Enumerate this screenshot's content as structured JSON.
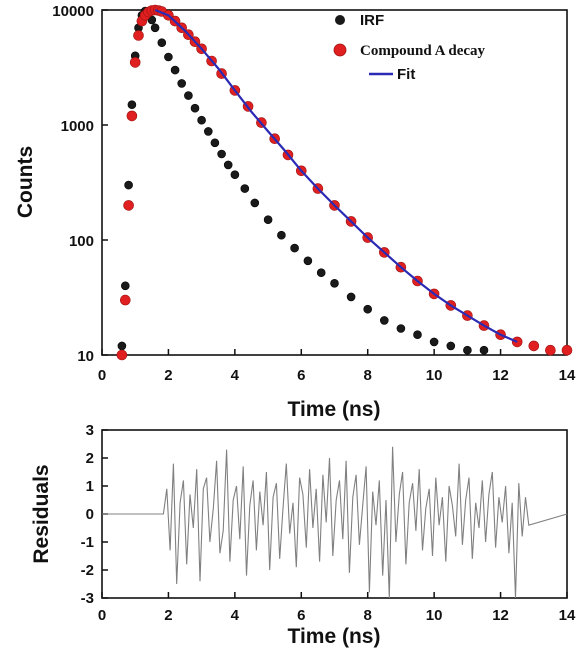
{
  "chart_data": [
    {
      "type": "scatter",
      "xlabel": "Time (ns)",
      "ylabel": "Counts",
      "y_scale": "log",
      "xlim": [
        0,
        14
      ],
      "ylim": [
        10,
        10000
      ],
      "xticks": [
        "0",
        "2",
        "4",
        "6",
        "8",
        "10",
        "12",
        "14"
      ],
      "yticks": [
        "10",
        "100",
        "1000",
        "10000"
      ],
      "legend_position": "top-right",
      "series": [
        {
          "name": "IRF",
          "marker": "circle",
          "color": "#1a1a1a",
          "x": [
            0.6,
            0.7,
            0.8,
            0.9,
            1.0,
            1.1,
            1.2,
            1.3,
            1.4,
            1.5,
            1.6,
            1.8,
            2.0,
            2.2,
            2.4,
            2.6,
            2.8,
            3.0,
            3.2,
            3.4,
            3.6,
            3.8,
            4.0,
            4.3,
            4.6,
            5.0,
            5.4,
            5.8,
            6.2,
            6.6,
            7.0,
            7.5,
            8.0,
            8.5,
            9.0,
            9.5,
            10.0,
            10.5,
            11.0,
            11.5
          ],
          "y": [
            12,
            40,
            300,
            1500,
            4000,
            7000,
            9000,
            9800,
            9500,
            8200,
            7000,
            5200,
            3900,
            3000,
            2300,
            1800,
            1400,
            1100,
            880,
            700,
            560,
            450,
            370,
            280,
            210,
            150,
            110,
            85,
            66,
            52,
            42,
            32,
            25,
            20,
            17,
            15,
            13,
            12,
            11,
            11
          ]
        },
        {
          "name": "Compound A decay",
          "marker": "circle",
          "color": "#e02020",
          "x": [
            0.6,
            0.7,
            0.8,
            0.9,
            1.0,
            1.1,
            1.2,
            1.3,
            1.4,
            1.5,
            1.6,
            1.7,
            1.8,
            2.0,
            2.2,
            2.4,
            2.6,
            2.8,
            3.0,
            3.3,
            3.6,
            4.0,
            4.4,
            4.8,
            5.2,
            5.6,
            6.0,
            6.5,
            7.0,
            7.5,
            8.0,
            8.5,
            9.0,
            9.5,
            10.0,
            10.5,
            11.0,
            11.5,
            12.0,
            12.5,
            13.0,
            13.5,
            14.0
          ],
          "y": [
            10,
            30,
            200,
            1200,
            3500,
            6000,
            8000,
            9000,
            9600,
            9900,
            10000,
            9900,
            9700,
            9000,
            8000,
            7000,
            6100,
            5300,
            4600,
            3600,
            2800,
            2000,
            1450,
            1050,
            760,
            550,
            400,
            280,
            200,
            145,
            105,
            78,
            58,
            44,
            34,
            27,
            22,
            18,
            15,
            13,
            12,
            11,
            11
          ]
        },
        {
          "name": "Fit",
          "marker": "line",
          "color": "#2a2ab5",
          "x": [
            1.6,
            2.0,
            2.5,
            3.0,
            3.5,
            4.0,
            4.5,
            5.0,
            5.5,
            6.0,
            6.5,
            7.0,
            7.5,
            8.0,
            8.5,
            9.0,
            9.5,
            10.0,
            10.5,
            11.0,
            11.5,
            12.0,
            12.5
          ],
          "y": [
            10000,
            9000,
            6600,
            4600,
            3100,
            2000,
            1300,
            880,
            600,
            400,
            280,
            200,
            145,
            105,
            78,
            58,
            44,
            34,
            27,
            22,
            18,
            15,
            13
          ]
        }
      ]
    },
    {
      "type": "line",
      "xlabel": "Time (ns)",
      "ylabel": "Residuals",
      "xlim": [
        0,
        14
      ],
      "ylim": [
        -3,
        3
      ],
      "xticks": [
        "0",
        "2",
        "4",
        "6",
        "8",
        "10",
        "12",
        "14"
      ],
      "yticks": [
        "3",
        "2",
        "1",
        "0",
        "-1",
        "-2",
        "-3"
      ],
      "series": [
        {
          "color": "#808080",
          "x": [
            0.0,
            1.85,
            1.95,
            2.05,
            2.15,
            2.25,
            2.35,
            2.45,
            2.55,
            2.65,
            2.75,
            2.85,
            2.95,
            3.05,
            3.15,
            3.25,
            3.35,
            3.45,
            3.55,
            3.65,
            3.75,
            3.85,
            3.95,
            4.05,
            4.15,
            4.25,
            4.35,
            4.45,
            4.55,
            4.65,
            4.75,
            4.85,
            4.95,
            5.05,
            5.15,
            5.25,
            5.35,
            5.45,
            5.55,
            5.65,
            5.75,
            5.85,
            5.95,
            6.05,
            6.15,
            6.25,
            6.35,
            6.45,
            6.55,
            6.65,
            6.75,
            6.85,
            6.95,
            7.05,
            7.15,
            7.25,
            7.35,
            7.45,
            7.55,
            7.65,
            7.75,
            7.85,
            7.95,
            8.05,
            8.15,
            8.25,
            8.35,
            8.45,
            8.55,
            8.65,
            8.75,
            8.85,
            8.95,
            9.05,
            9.15,
            9.25,
            9.35,
            9.45,
            9.55,
            9.65,
            9.75,
            9.85,
            9.95,
            10.05,
            10.15,
            10.25,
            10.35,
            10.45,
            10.55,
            10.65,
            10.75,
            10.85,
            10.95,
            11.05,
            11.15,
            11.25,
            11.35,
            11.45,
            11.55,
            11.65,
            11.75,
            11.85,
            11.95,
            12.05,
            12.15,
            12.25,
            12.35,
            12.45,
            12.55,
            12.65,
            12.75,
            12.85,
            14.0
          ],
          "y": [
            0.0,
            0.0,
            0.9,
            -1.3,
            1.8,
            -2.5,
            0.4,
            1.2,
            -1.8,
            0.7,
            -0.5,
            1.6,
            -2.4,
            0.9,
            1.3,
            -1.0,
            0.2,
            1.9,
            -1.4,
            -0.6,
            2.3,
            -1.7,
            0.5,
            1.0,
            -0.9,
            1.7,
            -2.2,
            0.3,
            1.2,
            -1.3,
            0.8,
            -0.4,
            1.5,
            -2.0,
            0.6,
            1.1,
            -1.6,
            0.2,
            1.8,
            -0.7,
            0.4,
            -1.9,
            1.3,
            0.7,
            -1.2,
            1.6,
            -0.5,
            0.9,
            -1.7,
            1.4,
            -0.3,
            2.0,
            -1.5,
            0.5,
            1.2,
            -0.9,
            1.9,
            -2.1,
            0.6,
            1.4,
            -1.1,
            0.3,
            1.7,
            -2.8,
            0.8,
            -0.4,
            1.2,
            -2.2,
            0.5,
            -3.0,
            2.4,
            -1.0,
            0.7,
            1.5,
            -1.8,
            0.4,
            1.1,
            -0.6,
            1.6,
            -1.3,
            0.2,
            0.9,
            -1.5,
            1.3,
            -0.4,
            0.6,
            -1.7,
            1.0,
            0.3,
            -0.8,
            1.8,
            -1.1,
            0.5,
            1.3,
            -1.6,
            0.4,
            -0.5,
            1.2,
            -1.0,
            0.7,
            1.5,
            -1.2,
            0.6,
            -0.3,
            1.0,
            -1.4,
            0.4,
            -3.0,
            1.1,
            -0.8,
            0.6,
            -0.4,
            0.0
          ]
        }
      ]
    }
  ]
}
